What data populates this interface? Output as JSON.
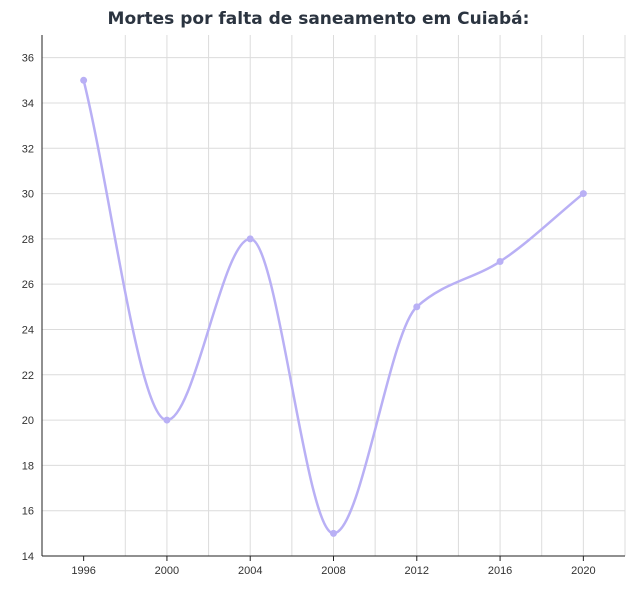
{
  "chart_data": {
    "type": "line",
    "title": "Mortes por falta de saneamento em Cuiabá:",
    "xlabel": "",
    "ylabel": "",
    "x": [
      1996,
      2000,
      2004,
      2008,
      2012,
      2016,
      2020
    ],
    "series": [
      {
        "values": [
          35,
          20,
          28,
          15,
          25,
          27,
          30
        ]
      }
    ],
    "x_ticks": [
      "1996",
      "2000",
      "2004",
      "2008",
      "2012",
      "2016",
      "2020"
    ],
    "y_ticks": [
      "14",
      "16",
      "18",
      "20",
      "22",
      "24",
      "26",
      "28",
      "30",
      "32",
      "34",
      "36"
    ],
    "xlim": [
      1994,
      2022
    ],
    "ylim": [
      14,
      37
    ],
    "grid": true,
    "smooth": true,
    "colors": {
      "line": "#b9b0f5",
      "grid": "#dcdcdc",
      "axis": "#222222"
    }
  }
}
